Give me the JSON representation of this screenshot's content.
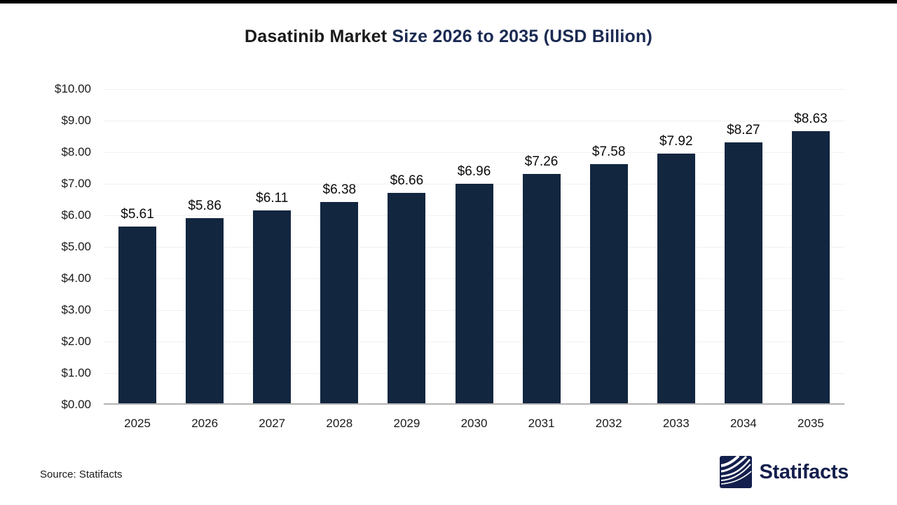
{
  "title": {
    "prefix": "Dasatinib Market ",
    "highlight": "Size 2026 to 2035 (USD Billion)"
  },
  "chart_data": {
    "type": "bar",
    "title": "Dasatinib Market Size 2026 to 2035 (USD Billion)",
    "categories": [
      "2025",
      "2026",
      "2027",
      "2028",
      "2029",
      "2030",
      "2031",
      "2032",
      "2033",
      "2034",
      "2035"
    ],
    "values": [
      5.61,
      5.86,
      6.11,
      6.38,
      6.66,
      6.96,
      7.26,
      7.58,
      7.92,
      8.27,
      8.63
    ],
    "value_labels": [
      "$5.61",
      "$5.86",
      "$6.11",
      "$6.38",
      "$6.66",
      "$6.96",
      "$7.26",
      "$7.58",
      "$7.92",
      "$8.27",
      "$8.63"
    ],
    "xlabel": "",
    "ylabel": "",
    "ylim": [
      0,
      10
    ],
    "yticks": [
      {
        "value": 0,
        "label": "$0.00"
      },
      {
        "value": 1,
        "label": "$1.00"
      },
      {
        "value": 2,
        "label": "$2.00"
      },
      {
        "value": 3,
        "label": "$3.00"
      },
      {
        "value": 4,
        "label": "$4.00"
      },
      {
        "value": 5,
        "label": "$5.00"
      },
      {
        "value": 6,
        "label": "$6.00"
      },
      {
        "value": 7,
        "label": "$7.00"
      },
      {
        "value": 8,
        "label": "$8.00"
      },
      {
        "value": 9,
        "label": "$9.00"
      },
      {
        "value": 10,
        "label": "$10.00"
      }
    ],
    "grid": "horizontal",
    "legend": "none",
    "bar_color": "#12263F"
  },
  "footer": {
    "source": "Source: Statifacts",
    "logo_text": "Statifacts"
  },
  "colors": {
    "bar": "#12263F",
    "title_highlight": "#1A2A52",
    "logo_navy": "#141F4D",
    "gridline": "#f1f1f1",
    "baseline": "#b3b3b3"
  }
}
